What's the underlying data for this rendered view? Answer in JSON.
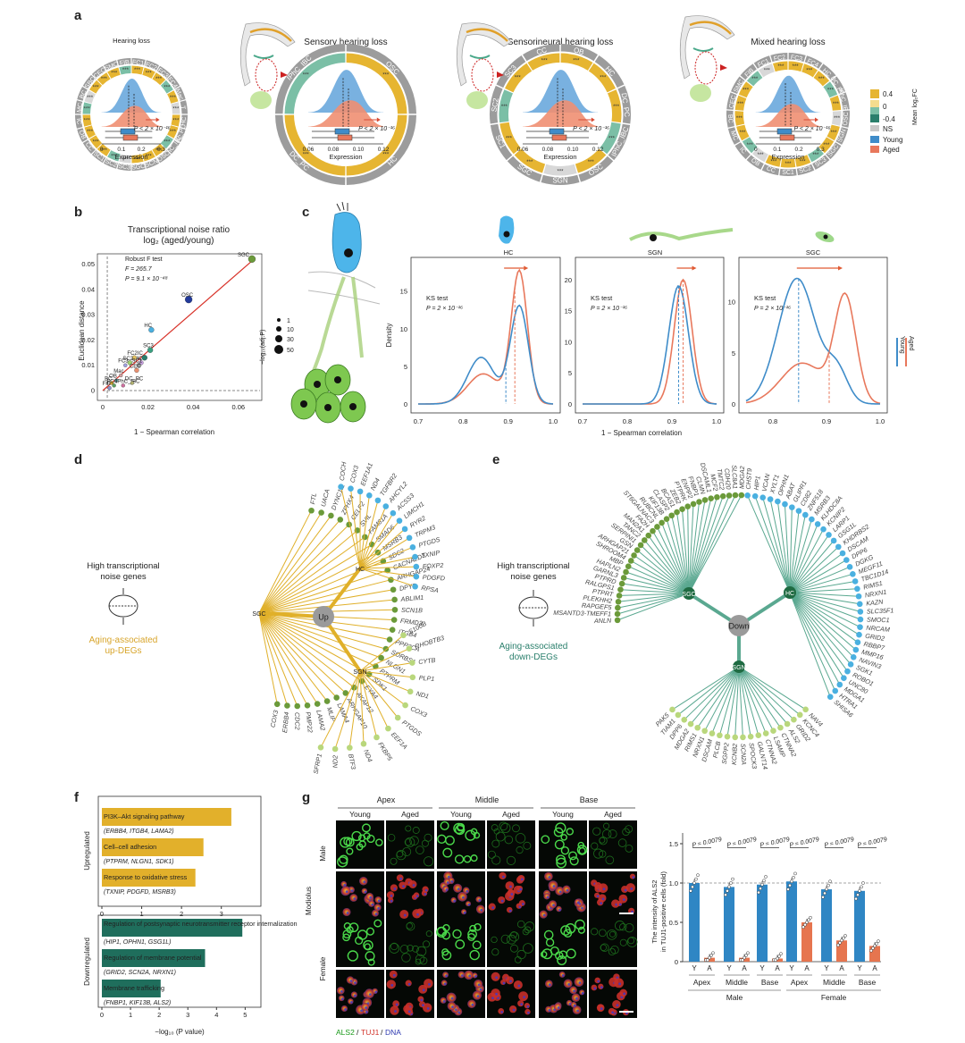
{
  "panel_labels": [
    "a",
    "b",
    "c",
    "d",
    "e",
    "f",
    "g"
  ],
  "a": {
    "titles": [
      "Hearing loss",
      "Sensory hearing loss",
      "Sensorineural hearing loss",
      "Mixed hearing loss"
    ],
    "xlabel": "Expression",
    "pval": "P < 2 × 10⁻¹⁶",
    "ticks_1": [
      "0",
      "0.1",
      "0.2",
      "0.3"
    ],
    "ticks_2": [
      "0.06",
      "0.08",
      "0.10",
      "0.12"
    ],
    "ticks_3": [
      "0.06",
      "0.08",
      "0.10",
      "0.12"
    ],
    "ticks_4": [
      "0",
      "0.1",
      "0.2",
      "0.3"
    ],
    "ring_1": [
      "FC1",
      "FC2",
      "FC3",
      "FC4",
      "Mac",
      "T",
      "HC",
      "DC_PC",
      "IPhC_IBC",
      "OSC",
      "SCN",
      "SGC",
      "SC3",
      "SC2",
      "SC1",
      "CC",
      "OB",
      "IC",
      "MC",
      "BC",
      "SBC",
      "CEC",
      "SMC",
      "FIB"
    ],
    "ring_2": [
      "OSC",
      "HC",
      "DC_PC",
      "IPhC_IBC"
    ],
    "ring_3": [
      "OB",
      "HC",
      "DC_PC",
      "IPhC_IBC",
      "OSC",
      "SGN",
      "SGC",
      "SC1",
      "SC2",
      "SC3",
      "CC"
    ],
    "ring_4": [
      "FC3",
      "FC4",
      "HC",
      "DC_PC",
      "IPhC_IBC",
      "OSC",
      "SGN",
      "SGC",
      "SC3",
      "SC2",
      "SC1",
      "CC",
      "OB",
      "IC",
      "MC",
      "BC",
      "CEC",
      "SMC",
      "FIB",
      "FC1",
      "FC2"
    ],
    "legend_title": "Mean log₂FC",
    "legend_vals": [
      "0.4",
      "0",
      "-0.4"
    ],
    "legend_ns": "NS",
    "legend_young": "Young",
    "legend_aged": "Aged",
    "sig": "***"
  },
  "b": {
    "title_1": "Transcriptional noise ratio",
    "title_2": "log₂ (aged/young)",
    "xlabel": "1 − Spearman correlation",
    "ylabel": "Euclidean distance",
    "yticks": [
      "0",
      "0.01",
      "0.02",
      "0.03",
      "0.04",
      "0.05"
    ],
    "xticks": [
      "0",
      "0.02",
      "0.04",
      "0.06"
    ],
    "test_1": "Robust F test",
    "test_2": "F = 265.7",
    "test_3": "P = 9.1 × 10⁻⁴⁸",
    "size_legend_title": "−log₁₀(adj.P)",
    "size_legend": [
      "1",
      "10",
      "30",
      "50"
    ]
  },
  "c": {
    "cells": [
      "HC",
      "SGN",
      "SGC"
    ],
    "ylabel": "Density",
    "xlabel": "1 − Spearman correlation",
    "ks": "KS test",
    "pvals": [
      "P = 2 × 10⁻¹⁶",
      "P = 2 × 10⁻¹⁶",
      "P = 2 × 10⁻¹⁶"
    ],
    "xticks_1": [
      "0.7",
      "0.8",
      "0.9",
      "1.0"
    ],
    "xticks_2": [
      "0.7",
      "0.8",
      "0.9",
      "1.0"
    ],
    "xticks_3": [
      "0.8",
      "0.9",
      "1.0"
    ],
    "yticks_1": [
      "0",
      "5",
      "10",
      "15"
    ],
    "yticks_2": [
      "0",
      "5",
      "10",
      "15",
      "20"
    ],
    "yticks_3": [
      "0",
      "5",
      "10"
    ],
    "legend": [
      "Young",
      "Aged"
    ]
  },
  "d": {
    "side_1": "High transcriptional",
    "side_2": "noise genes",
    "caption_1": "Aging-associated",
    "caption_2": "up-DEGs",
    "center": "Up",
    "hubs": [
      "SGC",
      "HC",
      "SGN"
    ],
    "sgc_genes": [
      "FTL",
      "UACA",
      "DYNC1I1",
      "ZFHX4",
      "CELF2",
      "SVIL",
      "FAM81A",
      "SMAD6",
      "MSRB3",
      "SDC2",
      "CACNA2D3",
      "ARHGAP24",
      "DPYD",
      "ABLIM1",
      "SCN1B",
      "FRMD3",
      "ITGB4",
      "PPP3CA",
      "SORBS1",
      "NLGN1",
      "PTPRM",
      "SDK1",
      "EYA4",
      "AKAP12",
      "ARHGAP10",
      "LAMA4",
      "MLIP",
      "LAMA2",
      "PMP22",
      "CDC2",
      "ERBB4",
      "COX3"
    ],
    "hc_genes": [
      "COCH",
      "COX3",
      "EEF1A1",
      "ND4",
      "TGFBR2",
      "AHCYL2",
      "ACSS3",
      "LIMCH1",
      "RYR2",
      "TRPM3",
      "PTGDS",
      "TXNIP",
      "FOXP2",
      "PDGFD",
      "RPSA"
    ],
    "sgn_genes": [
      "S100B",
      "RHOBTB3",
      "CYTB",
      "PLP1",
      "ND1",
      "COX3",
      "PTGDS",
      "EEF1A",
      "FKBP5",
      "ND4",
      "BTF3",
      "ND2",
      "SFRP1"
    ]
  },
  "e": {
    "side_1": "High transcriptional",
    "side_2": "noise genes",
    "caption_1": "Aging-associated",
    "caption_2": "down-DEGs",
    "center": "Down",
    "hubs": [
      "SGC",
      "HC",
      "SGN"
    ],
    "sgc_genes": [
      "MDGA2",
      "SLC8A1",
      "CDH20",
      "TMTC2",
      "MCF2",
      "DSCAML1",
      "CLMN",
      "FNBP1",
      "ENPP2",
      "PTPRK",
      "ZEB2",
      "BCAS1",
      "CLASP2",
      "KIF13B",
      "RUBCNL",
      "ST6GALNAC3",
      "FA2H",
      "MAN2A1",
      "TANC2",
      "SERPINI1",
      "GSN",
      "ARHGAP21",
      "SHROOM4",
      "MBP",
      "HAPLN2",
      "GARNL3",
      "PTPRD",
      "RALGPS1",
      "PTPRT",
      "PLEKHH2",
      "RAPGEF5",
      "MSANTD3-TMEFF1",
      "ANLN"
    ],
    "hc_genes": [
      "CHST9",
      "HIP1",
      "VCAN",
      "XYLT1",
      "OPHN1",
      "ABAT",
      "GLIPR1",
      "CD82",
      "ZNF518",
      "MSRB3",
      "KLHDC8A",
      "KCNIP2",
      "LARP1",
      "GSG1L",
      "KHDRBS2",
      "DSCAM",
      "DPP6",
      "DGKG",
      "MEGF11",
      "TBC1D14",
      "RIMS1",
      "NRXN1",
      "KAZN",
      "SLC35F1",
      "SMOC1",
      "NRCAM",
      "GRID2",
      "RBBP7",
      "MMP16",
      "NAVIN3",
      "SGK1",
      "ROBO1",
      "UNC80",
      "MDGA1",
      "HTRA1",
      "SHISA6"
    ],
    "sgn_genes": [
      "PAK5",
      "TIAM1",
      "DPP6",
      "MDGA2",
      "RIMS1",
      "NRXN1",
      "DSCAM",
      "PLCB",
      "SGPP2",
      "KCNB2",
      "SCN2A",
      "SPOCK3",
      "GALNT14",
      "CTNNA2",
      "LSAMP",
      "CTNNA2",
      "ALS2",
      "GRID2",
      "KCNC4",
      "NAV4"
    ]
  },
  "f": {
    "group_up": "Upregulated",
    "group_down": "Downregulated",
    "xlabel": "−log₁₀ (P value)",
    "xticks_up": [
      "0",
      "1",
      "2",
      "3"
    ],
    "xticks_down": [
      "0",
      "1",
      "2",
      "3",
      "4",
      "5"
    ]
  },
  "chart_data": [
    {
      "type": "bar",
      "title": "",
      "group": "Upregulated",
      "categories": [
        "PI3K–Akt signaling pathway",
        "Cell–cell adhesion",
        "Response to oxidative stress"
      ],
      "genes": [
        "(ERBB4, ITGB4, LAMA2)",
        "(PTPRM, NLGN1, SDK1)",
        "(TXNIP, PDGFD, MSRB3)"
      ],
      "values": [
        3.25,
        2.55,
        2.35
      ],
      "xlim": [
        0,
        3.5
      ],
      "xlabel": "−log₁₀ (P value)"
    },
    {
      "type": "bar",
      "title": "",
      "group": "Downregulated",
      "categories": [
        "Regulation of postsynaptic neurotransmitter receptor internalization",
        "Regulation of membrane potential",
        "Membrane trafficking"
      ],
      "genes": [
        "(HIP1, OPHN1, GSG1L)",
        "(GRID2, SCN2A, NRXN1)",
        "(FNBP1, KIF13B, ALS2)"
      ],
      "values": [
        4.9,
        3.6,
        2.05
      ],
      "xlim": [
        0,
        5.5
      ],
      "xlabel": "−log₁₀ (P value)"
    },
    {
      "type": "bar",
      "title": "",
      "ylabel": "The intensity of ALS2 in TUJ1-positive cells (fold)",
      "categories": [
        "Y",
        "A",
        "Y",
        "A",
        "Y",
        "A",
        "Y",
        "A",
        "Y",
        "A",
        "Y",
        "A"
      ],
      "regions": [
        "Apex",
        "Middle",
        "Base",
        "Apex",
        "Middle",
        "Base"
      ],
      "sexes": [
        "Male",
        "Female"
      ],
      "values": [
        1.0,
        0.05,
        0.95,
        0.05,
        0.98,
        0.04,
        1.02,
        0.5,
        0.92,
        0.27,
        0.9,
        0.2
      ],
      "ylim": [
        0,
        1.8
      ],
      "yticks": [
        "0",
        "0.5",
        "1.0",
        "1.5"
      ],
      "pvals": [
        "P = 0.0079",
        "P = 0.0079",
        "P = 0.0079",
        "P = 0.0079",
        "P = 0.0079",
        "P = 0.0079"
      ],
      "colors": {
        "young": "#2f86c4",
        "aged": "#e6754f"
      }
    }
  ],
  "g": {
    "regions": [
      "Apex",
      "Middle",
      "Base"
    ],
    "cols": [
      "Young",
      "Aged",
      "Young",
      "Aged",
      "Young",
      "Aged"
    ],
    "rows": [
      "Male",
      "Female"
    ],
    "side": "Modiolus",
    "stain_1": "ALS2",
    "stain_2": "TUJ1",
    "stain_3": "DNA"
  },
  "colors": {
    "young": "#3f8cc9",
    "aged": "#e8785c",
    "gold": "#e0b02a",
    "teal": "#2a7f6c",
    "green_node": "#6b9a3a",
    "blue_node": "#4ab0e0",
    "gray": "#9a9a9a"
  }
}
